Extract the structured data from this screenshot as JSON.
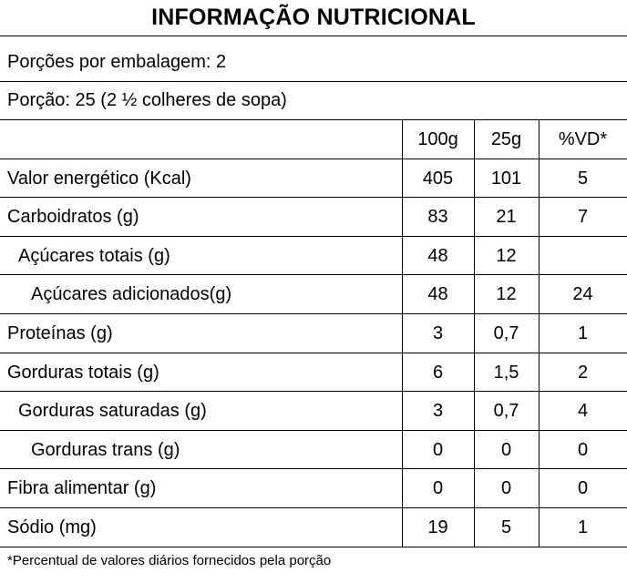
{
  "title": "INFORMAÇÃO NUTRICIONAL",
  "servings_per_package": "Porções por embalagem: 2",
  "serving_size": "Porção: 25 (2 ½ colheres de sopa)",
  "columns": [
    "100g",
    "25g",
    "%VD*"
  ],
  "rows": [
    {
      "label": "Valor energético (Kcal)",
      "indent": 0,
      "per100g": "405",
      "per25g": "101",
      "vd": "5"
    },
    {
      "label": "Carboidratos (g)",
      "indent": 0,
      "per100g": "83",
      "per25g": "21",
      "vd": "7"
    },
    {
      "label": "Açúcares totais (g)",
      "indent": 1,
      "per100g": "48",
      "per25g": "12",
      "vd": ""
    },
    {
      "label": "Açúcares adicionados(g)",
      "indent": 2,
      "per100g": "48",
      "per25g": "12",
      "vd": "24"
    },
    {
      "label": "Proteínas (g)",
      "indent": 0,
      "per100g": "3",
      "per25g": "0,7",
      "vd": "1"
    },
    {
      "label": "Gorduras totais (g)",
      "indent": 0,
      "per100g": "6",
      "per25g": "1,5",
      "vd": "2"
    },
    {
      "label": "Gorduras saturadas (g)",
      "indent": 1,
      "per100g": "3",
      "per25g": "0,7",
      "vd": "4"
    },
    {
      "label": "Gorduras trans (g)",
      "indent": 2,
      "per100g": "0",
      "per25g": "0",
      "vd": "0"
    },
    {
      "label": "Fibra alimentar (g)",
      "indent": 0,
      "per100g": "0",
      "per25g": "0",
      "vd": "0"
    },
    {
      "label": "Sódio (mg)",
      "indent": 0,
      "per100g": "19",
      "per25g": "5",
      "vd": "1"
    }
  ],
  "footnote": "*Percentual de valores diários fornecidos pela porção"
}
